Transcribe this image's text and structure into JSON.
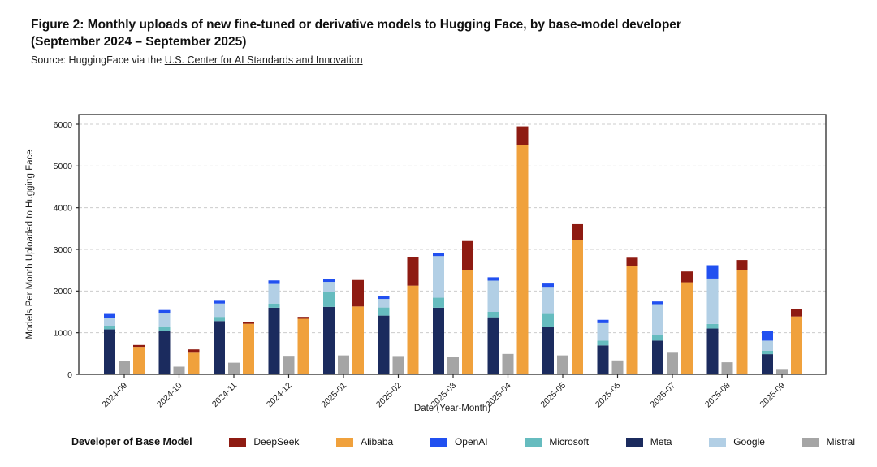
{
  "header": {
    "title_line1": "Figure 2: Monthly uploads of new fine-tuned or derivative models to Hugging Face, by base-model developer",
    "title_line2": "(September 2024 – September 2025)",
    "source_prefix": "Source: HuggingFace via the ",
    "source_link": "U.S. Center for AI Standards and Innovation"
  },
  "chart_data": {
    "type": "bar",
    "variant": "grouped-stacked-columns",
    "title": "",
    "xlabel": "Date (Year-Month)",
    "ylabel": "Models Per Month Uploaded to Hugging Face",
    "ylim": [
      0,
      6200
    ],
    "yticks": [
      0,
      1000,
      2000,
      3000,
      4000,
      5000,
      6000
    ],
    "grid": "horizontal-dashed",
    "legend_position": "bottom",
    "legend_title": "Developer of Base Model",
    "legend_order": [
      "DeepSeek",
      "Alibaba",
      "OpenAI",
      "Microsoft",
      "Meta",
      "Google",
      "Mistral"
    ],
    "categories": [
      "2024-09",
      "2024-10",
      "2024-11",
      "2024-12",
      "2025-01",
      "2025-02",
      "2025-03",
      "2025-04",
      "2025-05",
      "2025-06",
      "2025-07",
      "2025-08",
      "2025-09"
    ],
    "bars_per_category": [
      {
        "stack": [
          "Meta",
          "Microsoft",
          "Google",
          "OpenAI"
        ]
      },
      {
        "stack": [
          "Mistral"
        ]
      },
      {
        "stack": [
          "Alibaba",
          "DeepSeek"
        ]
      }
    ],
    "series": [
      {
        "name": "DeepSeek",
        "color": "#8E1B12",
        "values": [
          45,
          80,
          45,
          45,
          635,
          690,
          690,
          450,
          390,
          190,
          260,
          245,
          175
        ]
      },
      {
        "name": "Alibaba",
        "color": "#F0A13C",
        "values": [
          660,
          520,
          1215,
          1335,
          1630,
          2130,
          2510,
          5500,
          3215,
          2610,
          2210,
          2500,
          1390
        ]
      },
      {
        "name": "OpenAI",
        "color": "#2150F0",
        "values": [
          100,
          85,
          85,
          85,
          65,
          65,
          65,
          80,
          80,
          80,
          65,
          320,
          225
        ]
      },
      {
        "name": "Microsoft",
        "color": "#66BCBF",
        "values": [
          70,
          85,
          100,
          100,
          355,
          195,
          240,
          130,
          320,
          115,
          130,
          110,
          80
        ]
      },
      {
        "name": "Meta",
        "color": "#1B2B5E",
        "values": [
          1080,
          1050,
          1280,
          1600,
          1620,
          1410,
          1600,
          1370,
          1130,
          695,
          810,
          1100,
          485
        ]
      },
      {
        "name": "Google",
        "color": "#B2CFE5",
        "values": [
          200,
          325,
          320,
          470,
          245,
          205,
          1000,
          750,
          650,
          420,
          745,
          1090,
          245
        ]
      },
      {
        "name": "Mistral",
        "color": "#A5A5A5",
        "values": [
          315,
          185,
          280,
          445,
          455,
          440,
          410,
          490,
          455,
          335,
          520,
          290,
          130
        ]
      }
    ]
  }
}
